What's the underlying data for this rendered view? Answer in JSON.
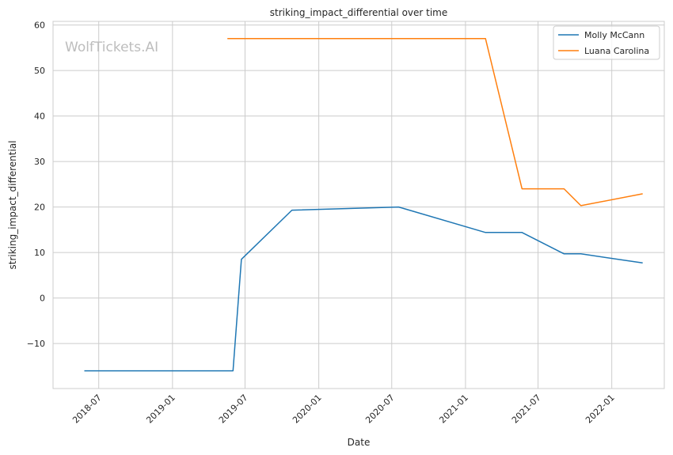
{
  "chart_data": {
    "type": "line",
    "title": "striking_impact_differential over time",
    "xlabel": "Date",
    "ylabel": "striking_impact_differential",
    "watermark": "WolfTickets.AI",
    "grid": true,
    "legend_position": "top-right",
    "xlim": [
      "2018-03-09",
      "2022-05-12"
    ],
    "ylim": [
      -19.9,
      60.8
    ],
    "x_ticks": [
      "2018-07",
      "2019-01",
      "2019-07",
      "2020-01",
      "2020-07",
      "2021-01",
      "2021-07",
      "2022-01"
    ],
    "y_ticks": [
      -10,
      0,
      10,
      20,
      30,
      40,
      50,
      60
    ],
    "y_tick_labels": [
      "−10",
      "0",
      "10",
      "20",
      "30",
      "40",
      "50",
      "60"
    ],
    "series": [
      {
        "name": "Molly McCann",
        "color": "#1f77b4",
        "points": [
          {
            "x": "2018-05-26",
            "y": -16.0
          },
          {
            "x": "2019-06-01",
            "y": -16.0
          },
          {
            "x": "2019-06-22",
            "y": 8.5
          },
          {
            "x": "2019-10-26",
            "y": 19.3
          },
          {
            "x": "2020-07-18",
            "y": 20.0
          },
          {
            "x": "2021-02-20",
            "y": 14.4
          },
          {
            "x": "2021-05-22",
            "y": 14.4
          },
          {
            "x": "2021-09-04",
            "y": 9.7
          },
          {
            "x": "2021-10-16",
            "y": 9.7
          },
          {
            "x": "2022-03-19",
            "y": 7.7
          }
        ]
      },
      {
        "name": "Luana Carolina",
        "color": "#ff7f0e",
        "points": [
          {
            "x": "2019-05-18",
            "y": 57.0
          },
          {
            "x": "2021-02-20",
            "y": 57.0
          },
          {
            "x": "2021-05-22",
            "y": 24.0
          },
          {
            "x": "2021-09-04",
            "y": 24.0
          },
          {
            "x": "2021-10-16",
            "y": 20.3
          },
          {
            "x": "2022-03-19",
            "y": 22.9
          }
        ]
      }
    ]
  }
}
